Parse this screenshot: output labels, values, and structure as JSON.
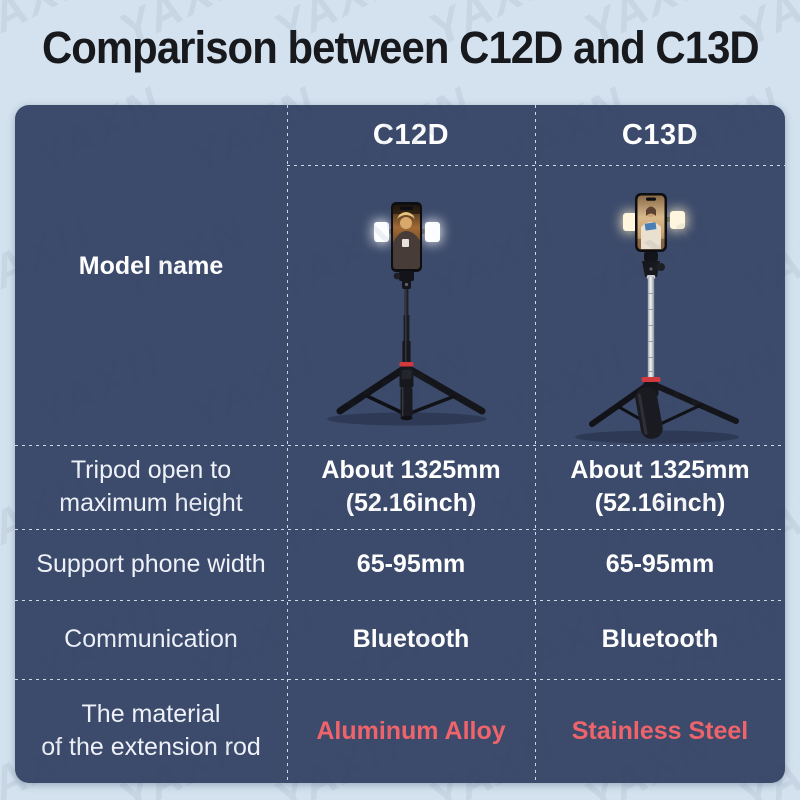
{
  "title": "Comparison between C12D and C13D",
  "watermark_text": "YAXN",
  "colors": {
    "background": "#d4e2ef",
    "table_background": "#3c4a6b",
    "title_text": "#17191d",
    "body_text": "#ffffff",
    "highlight_text": "#ef646b",
    "divider": "#ebf2fa",
    "accent_red_ring": "#d2393f"
  },
  "table": {
    "headers": {
      "c12d": "C12D",
      "c13d": "C13D"
    },
    "model_row": {
      "label": "Model name",
      "c12d_image": "tripod selfie stick with phone and dual fill lights, black aluminum pole",
      "c13d_image": "tripod selfie stick with phone and dual fill lights, silver stainless steel pole"
    },
    "rows": [
      {
        "label_line1": "Tripod open to",
        "label_line2": "maximum height",
        "c12d_line1": "About 1325mm",
        "c12d_line2": "(52.16inch)",
        "c13d_line1": "About 1325mm",
        "c13d_line2": "(52.16inch)"
      },
      {
        "label_line1": "Support phone width",
        "c12d_line1": "65-95mm",
        "c13d_line1": "65-95mm"
      },
      {
        "label_line1": "Communication",
        "c12d_line1": "Bluetooth",
        "c13d_line1": "Bluetooth"
      },
      {
        "label_line1": "The material",
        "label_line2": "of the extension rod",
        "c12d_line1": "Aluminum Alloy",
        "c13d_line1": "Stainless Steel"
      }
    ]
  },
  "chart_data": {
    "type": "table",
    "title": "Comparison between C12D and C13D",
    "columns": [
      "",
      "C12D",
      "C13D"
    ],
    "rows": [
      [
        "Model name",
        "product photo: black aluminum tripod selfie stick",
        "product photo: silver stainless steel tripod selfie stick"
      ],
      [
        "Tripod open to maximum height",
        "About 1325mm (52.16inch)",
        "About 1325mm (52.16inch)"
      ],
      [
        "Support phone width",
        "65-95mm",
        "65-95mm"
      ],
      [
        "Communication",
        "Bluetooth",
        "Bluetooth"
      ],
      [
        "The material of the extension rod",
        "Aluminum Alloy",
        "Stainless Steel"
      ]
    ],
    "highlight_row": "The material of the extension rod",
    "highlight_color": "#ef646b"
  }
}
